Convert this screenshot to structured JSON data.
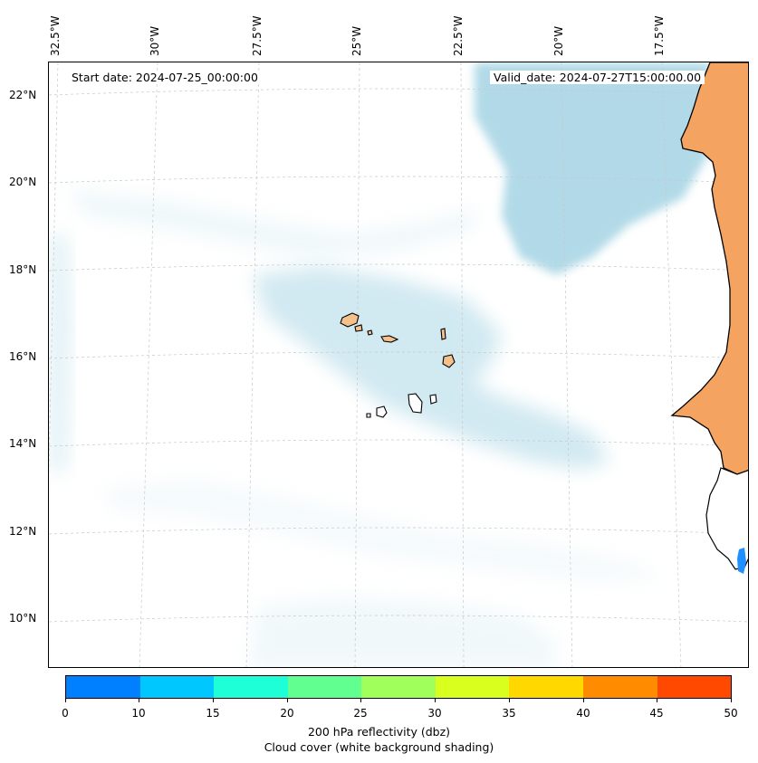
{
  "map": {
    "start_date_text": "Start date: 2024-07-25_00:00:00",
    "valid_date_text": "Valid_date: 2024-07-27T15:00:00.00",
    "longitude_labels": [
      "32.5°W",
      "30°W",
      "27.5°W",
      "25°W",
      "22.5°W",
      "20°W",
      "17.5°W"
    ],
    "latitude_labels": [
      "22°N",
      "20°N",
      "18°N",
      "16°N",
      "14°N",
      "12°N",
      "10°N"
    ],
    "colors": {
      "cloud": "#add8e6",
      "land_high_reflectivity": "#f4a460",
      "islands": "#f4c08c",
      "coastline": "#000000",
      "gridline": "#c8c8c8",
      "small_echo": "#1e90ff"
    }
  },
  "colorbar": {
    "tick_labels": [
      "0",
      "10",
      "15",
      "20",
      "25",
      "30",
      "35",
      "40",
      "45",
      "50"
    ],
    "colors": [
      "#0080ff",
      "#00c8ff",
      "#1effd8",
      "#60ff90",
      "#a0ff5a",
      "#d8ff1e",
      "#ffd800",
      "#ff8c00",
      "#ff4800"
    ],
    "title_line1": "200 hPa reflectivity (dbz)",
    "title_line2": "Cloud cover (white background shading)"
  }
}
